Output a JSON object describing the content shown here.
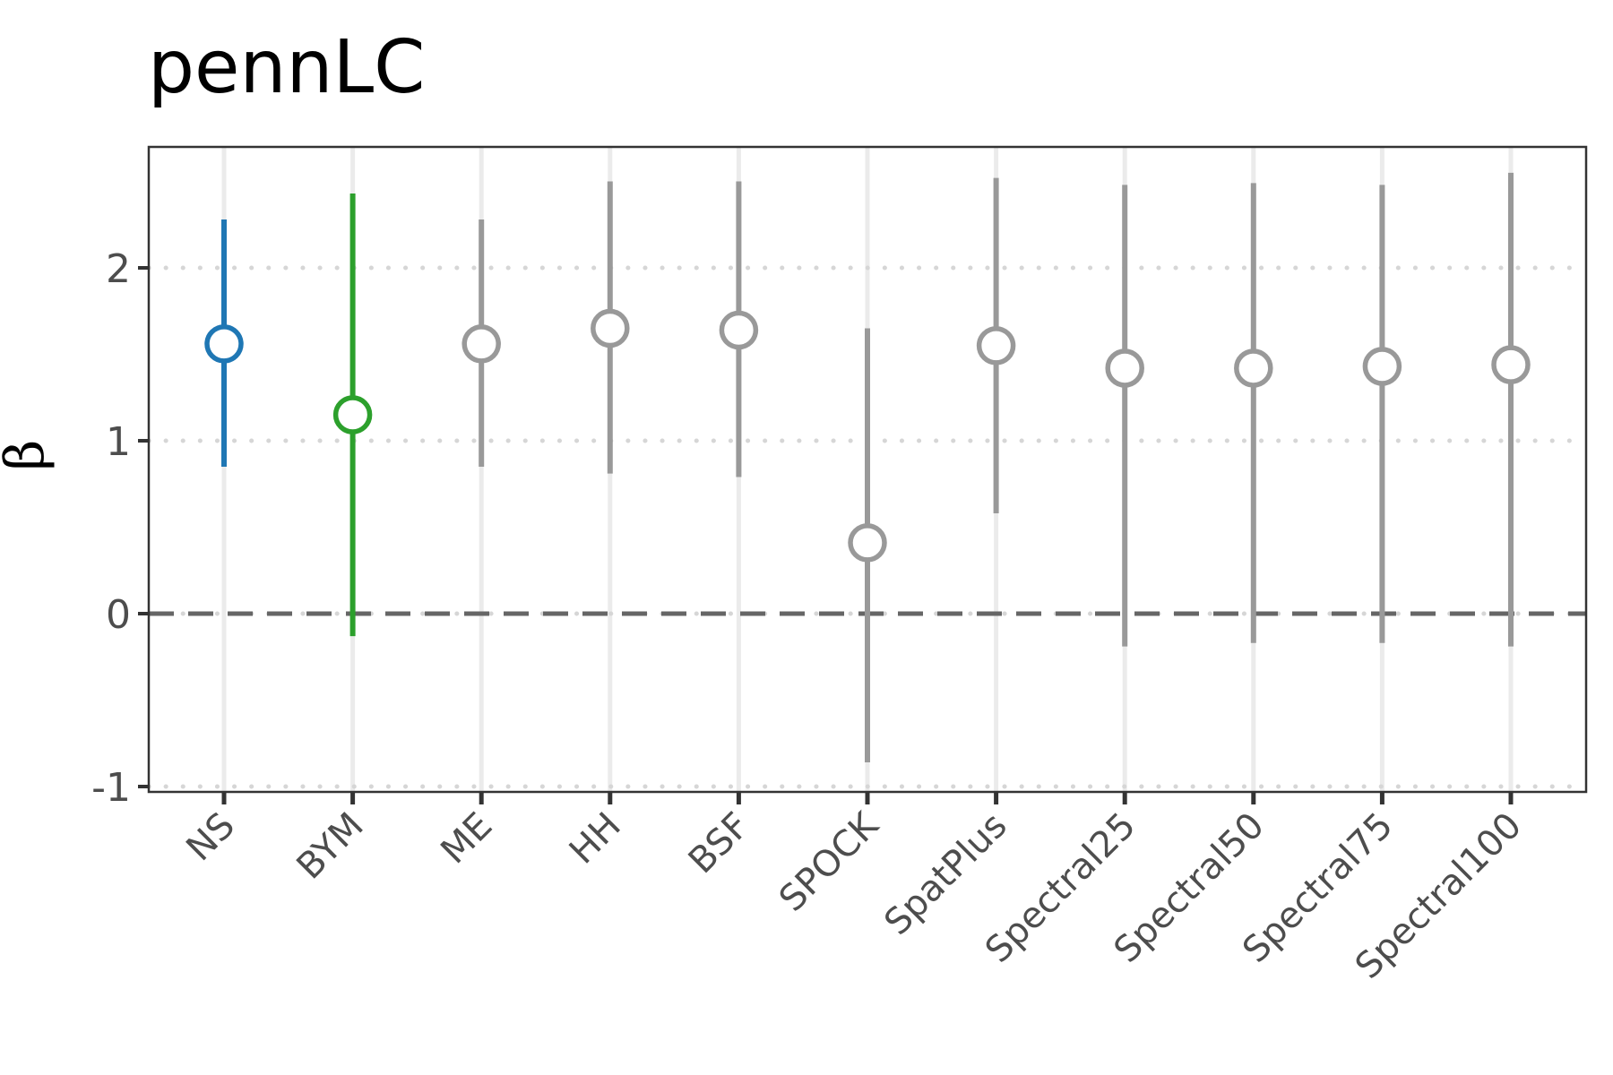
{
  "chart_data": {
    "type": "scatter",
    "title": "pennLC",
    "xlabel": "",
    "ylabel": "β",
    "ylim": [
      -1,
      2.55
    ],
    "yticks": [
      -1,
      0,
      1,
      2
    ],
    "categories": [
      "NS",
      "BYM",
      "ME",
      "HH",
      "BSF",
      "SPOCK",
      "SpatPlus",
      "Spectral25",
      "Spectral50",
      "Spectral75",
      "Spectral100"
    ],
    "points": [
      {
        "category": "NS",
        "estimate": 1.56,
        "lower": 0.85,
        "upper": 2.28,
        "color": "#1f77b4"
      },
      {
        "category": "BYM",
        "estimate": 1.15,
        "lower": -0.13,
        "upper": 2.43,
        "color": "#2ca02c"
      },
      {
        "category": "ME",
        "estimate": 1.56,
        "lower": 0.85,
        "upper": 2.28,
        "color": "#999999"
      },
      {
        "category": "HH",
        "estimate": 1.65,
        "lower": 0.81,
        "upper": 2.5,
        "color": "#999999"
      },
      {
        "category": "BSF",
        "estimate": 1.64,
        "lower": 0.79,
        "upper": 2.5,
        "color": "#999999"
      },
      {
        "category": "SPOCK",
        "estimate": 0.41,
        "lower": -0.86,
        "upper": 1.65,
        "color": "#999999"
      },
      {
        "category": "SpatPlus",
        "estimate": 1.55,
        "lower": 0.58,
        "upper": 2.52,
        "color": "#999999"
      },
      {
        "category": "Spectral25",
        "estimate": 1.42,
        "lower": -0.19,
        "upper": 2.48,
        "color": "#999999"
      },
      {
        "category": "Spectral50",
        "estimate": 1.42,
        "lower": -0.17,
        "upper": 2.49,
        "color": "#999999"
      },
      {
        "category": "Spectral75",
        "estimate": 1.43,
        "lower": -0.17,
        "upper": 2.48,
        "color": "#999999"
      },
      {
        "category": "Spectral100",
        "estimate": 1.44,
        "lower": -0.19,
        "upper": 2.55,
        "color": "#999999"
      }
    ],
    "reference_line": {
      "y": 0,
      "style": "dashed",
      "color": "#666666"
    },
    "grid": {
      "horizontal": "dotted",
      "vertical": "solid-light"
    },
    "legend": "none"
  }
}
